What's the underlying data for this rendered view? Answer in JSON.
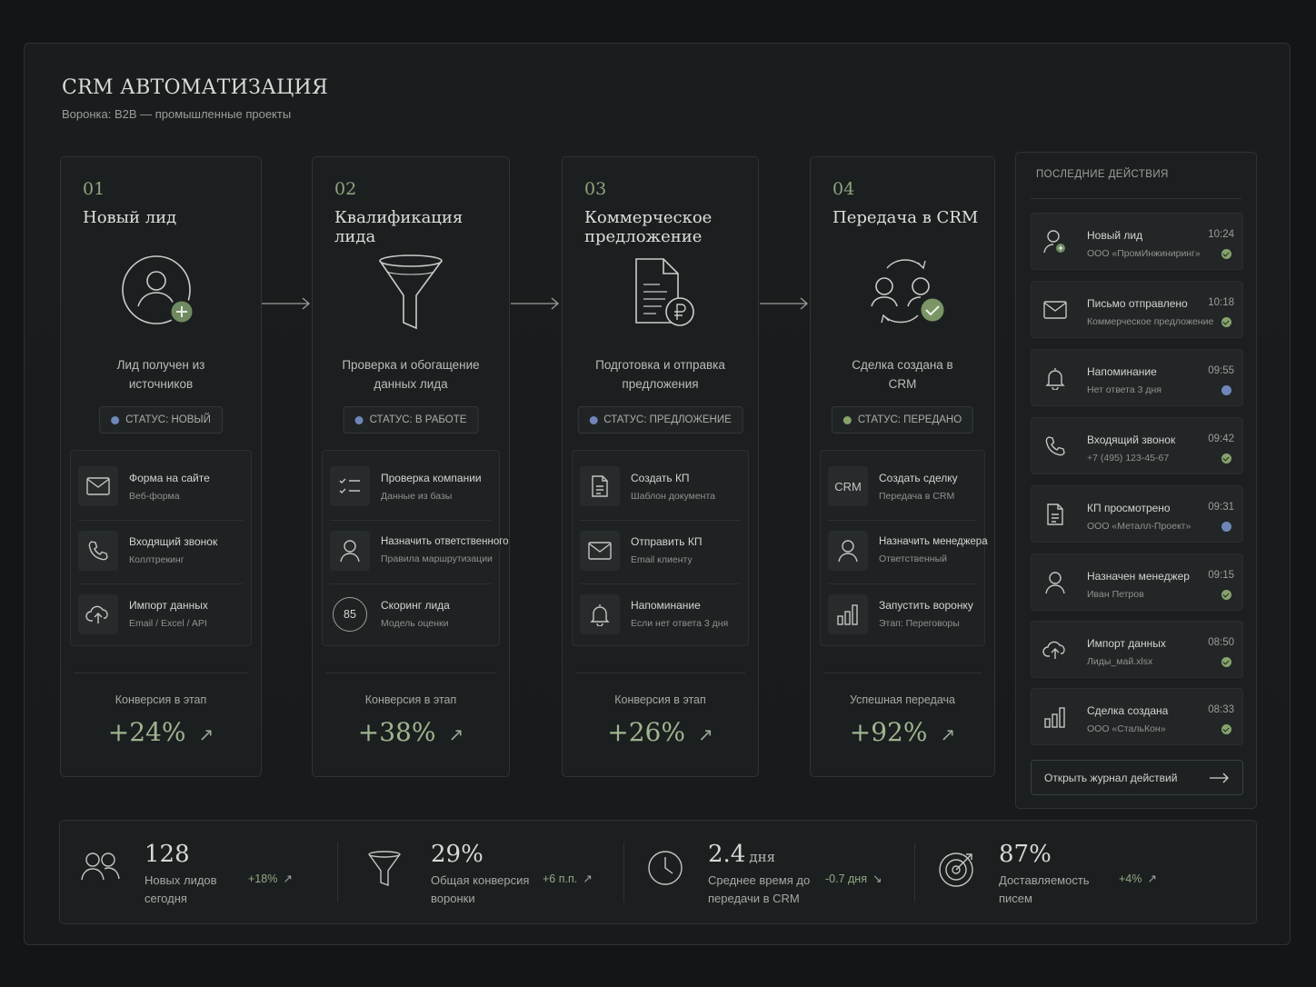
{
  "header": {
    "title": "CRM АВТОМАТИЗАЦИЯ",
    "subtitle": "Воронка: B2B — промышленные проекты"
  },
  "colors": {
    "accent_green": "#9fb590",
    "status_blue": "#6f86b8",
    "status_green": "#86a36b",
    "background": "#131516",
    "panel": "#1c1f20"
  },
  "stages": [
    {
      "number": "01",
      "name": "Новый лид",
      "hero_icon": "user-add-icon",
      "description": "Лид получен из источников",
      "status": "СТАТУС: НОВЫЙ",
      "status_color": "#6f86b8",
      "items": [
        {
          "icon": "mail-icon",
          "title": "Форма на сайте",
          "subtitle": "Веб-форма"
        },
        {
          "icon": "phone-icon",
          "title": "Входящий звонок",
          "subtitle": "Коллтрекинг"
        },
        {
          "icon": "cloud-upload-icon",
          "title": "Импорт данных",
          "subtitle": "Email / Excel / API"
        }
      ],
      "conversion_label": "Конверсия в этап",
      "conversion_value": "+24%"
    },
    {
      "number": "02",
      "name": "Квалификация лида",
      "hero_icon": "funnel-icon",
      "description": "Проверка и обогащение данных лида",
      "status": "СТАТУС: В РАБОТЕ",
      "status_color": "#6f86b8",
      "items": [
        {
          "icon": "checklist-icon",
          "title": "Проверка компании",
          "subtitle": "Данные из базы"
        },
        {
          "icon": "user-icon",
          "title": "Назначить ответственного",
          "subtitle": "Правила маршрутизации"
        },
        {
          "icon": "score-icon",
          "icon_text": "85",
          "title": "Скоринг лида",
          "subtitle": "Модель оценки"
        }
      ],
      "conversion_label": "Конверсия в этап",
      "conversion_value": "+38%"
    },
    {
      "number": "03",
      "name": "Коммерческое предложение",
      "hero_icon": "document-ruble-icon",
      "description": "Подготовка и отправка предложения",
      "status": "СТАТУС: ПРЕДЛОЖЕНИЕ",
      "status_color": "#6f86b8",
      "items": [
        {
          "icon": "document-icon",
          "title": "Создать КП",
          "subtitle": "Шаблон документа"
        },
        {
          "icon": "mail-icon",
          "title": "Отправить КП",
          "subtitle": "Email клиенту"
        },
        {
          "icon": "bell-icon",
          "title": "Напоминание",
          "subtitle": "Если нет ответа 3 дня"
        }
      ],
      "conversion_label": "Конверсия в этап",
      "conversion_value": "+26%"
    },
    {
      "number": "04",
      "name": "Передача в CRM",
      "hero_icon": "handoff-check-icon",
      "description": "Сделка создана в CRM",
      "status": "СТАТУС: ПЕРЕДАНО",
      "status_color": "#86a36b",
      "items": [
        {
          "icon": "crm-icon",
          "icon_text": "CRM",
          "title": "Создать сделку",
          "subtitle": "Передача в CRM"
        },
        {
          "icon": "user-icon",
          "title": "Назначить менеджера",
          "subtitle": "Ответственный"
        },
        {
          "icon": "bar-chart-icon",
          "title": "Запустить воронку",
          "subtitle": "Этап: Переговоры"
        }
      ],
      "conversion_label": "Успешная передача",
      "conversion_value": "+92%"
    }
  ],
  "recent": {
    "title": "ПОСЛЕДНИЕ ДЕЙСТВИЯ",
    "items": [
      {
        "icon": "user-add-icon",
        "title": "Новый лид",
        "subtitle": "ООО «ПромИнжиниринг»",
        "time": "10:24",
        "status": "ok"
      },
      {
        "icon": "mail-icon",
        "title": "Письмо отправлено",
        "subtitle": "Коммерческое предложение",
        "time": "10:18",
        "status": "ok"
      },
      {
        "icon": "bell-icon",
        "title": "Напоминание",
        "subtitle": "Нет ответа 3 дня",
        "time": "09:55",
        "status": "info"
      },
      {
        "icon": "phone-icon",
        "title": "Входящий звонок",
        "subtitle": "+7 (495) 123-45-67",
        "time": "09:42",
        "status": "ok"
      },
      {
        "icon": "document-icon",
        "title": "КП просмотрено",
        "subtitle": "ООО «Металл-Проект»",
        "time": "09:31",
        "status": "info"
      },
      {
        "icon": "user-icon",
        "title": "Назначен менеджер",
        "subtitle": "Иван Петров",
        "time": "09:15",
        "status": "ok"
      },
      {
        "icon": "cloud-upload-icon",
        "title": "Импорт данных",
        "subtitle": "Лиды_май.xlsx",
        "time": "08:50",
        "status": "ok"
      },
      {
        "icon": "bar-chart-icon",
        "title": "Сделка создана",
        "subtitle": "ООО «СтальКон»",
        "time": "08:33",
        "status": "ok"
      }
    ],
    "open_log_label": "Открыть журнал действий"
  },
  "kpis": [
    {
      "icon": "users-icon",
      "value": "128",
      "unit": "",
      "label_line1": "Новых лидов",
      "label_line2": "сегодня",
      "delta": "+18%",
      "trend": "up"
    },
    {
      "icon": "funnel-icon",
      "value": "29%",
      "unit": "",
      "label_line1": "Общая конверсия",
      "label_line2": "воронки",
      "delta": "+6 п.п.",
      "trend": "up"
    },
    {
      "icon": "clock-icon",
      "value": "2.4",
      "unit": "дня",
      "label_line1": "Среднее время до",
      "label_line2": "передачи в CRM",
      "delta": "-0.7 дня",
      "trend": "down"
    },
    {
      "icon": "target-icon",
      "value": "87%",
      "unit": "",
      "label_line1": "Доставляемость",
      "label_line2": "писем",
      "delta": "+4%",
      "trend": "up"
    }
  ]
}
